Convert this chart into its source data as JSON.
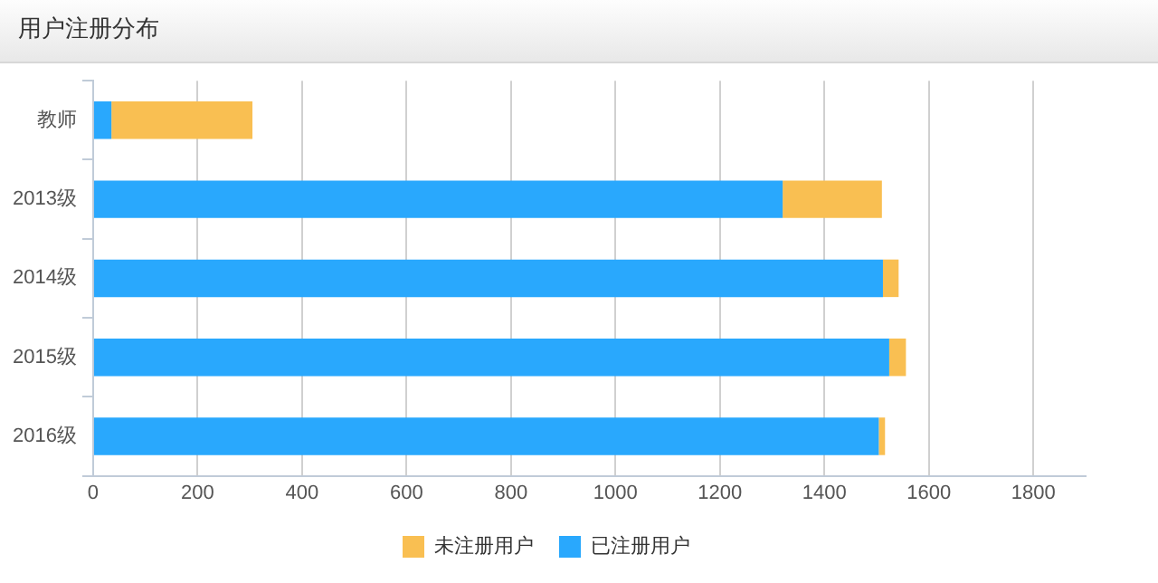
{
  "chart_data": {
    "type": "bar",
    "title": "用户注册分布",
    "orientation": "horizontal",
    "stacked": true,
    "categories": [
      "教师",
      "2013级",
      "2014级",
      "2015级",
      "2016级"
    ],
    "series": [
      {
        "name": "已注册用户",
        "color": "#29a8fd",
        "values": [
          35,
          1320,
          1512,
          1524,
          1504
        ]
      },
      {
        "name": "未注册用户",
        "color": "#f9bf52",
        "values": [
          270,
          190,
          30,
          32,
          12
        ]
      }
    ],
    "xlim": [
      0,
      1900
    ],
    "xticks": [
      0,
      200,
      400,
      600,
      800,
      1000,
      1200,
      1400,
      1600,
      1800
    ],
    "grid": "x",
    "legend": "bottom"
  }
}
